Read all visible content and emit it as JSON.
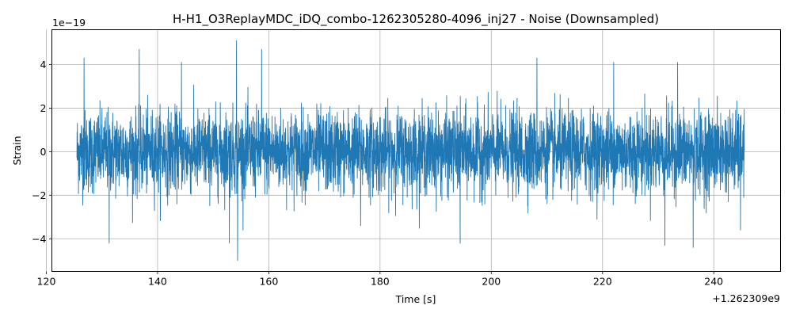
{
  "chart_data": {
    "type": "line",
    "title": "H-H1_O3ReplayMDC_iDQ_combo-1262305280-4096_inj27 - Noise (Downsampled)",
    "xlabel": "Time [s]",
    "ylabel": "Strain",
    "x_offset_label": "+1.262309e9",
    "y_scale_label": "1e−19",
    "xlim": [
      121,
      252
    ],
    "ylim": [
      -5.5,
      5.6
    ],
    "x_ticks": [
      120,
      140,
      160,
      180,
      200,
      220,
      240
    ],
    "x_tick_labels": [
      "120",
      "140",
      "160",
      "180",
      "200",
      "220",
      "240"
    ],
    "y_ticks": [
      -4,
      -2,
      0,
      2,
      4
    ],
    "y_tick_labels": [
      "−4",
      "−2",
      "0",
      "2",
      "4"
    ],
    "grid": true,
    "series": [
      {
        "color": "#1f77b4",
        "x_start": 125.5,
        "x_end": 245.5,
        "typical_amplitude": 1.3,
        "peaks": [
          {
            "x": 126.8,
            "y": 4.3
          },
          {
            "x": 131.3,
            "y": -4.2
          },
          {
            "x": 136.7,
            "y": 4.7
          },
          {
            "x": 144.3,
            "y": 4.1
          },
          {
            "x": 152.9,
            "y": -4.2
          },
          {
            "x": 154.2,
            "y": 5.1
          },
          {
            "x": 154.4,
            "y": -5.0
          },
          {
            "x": 158.7,
            "y": 4.7
          },
          {
            "x": 176.5,
            "y": -3.4
          },
          {
            "x": 194.4,
            "y": -4.2
          },
          {
            "x": 208.2,
            "y": 4.3
          },
          {
            "x": 222.0,
            "y": 4.1
          },
          {
            "x": 231.2,
            "y": -4.3
          },
          {
            "x": 233.5,
            "y": 4.1
          },
          {
            "x": 236.3,
            "y": -4.4
          },
          {
            "x": 244.8,
            "y": -3.6
          }
        ]
      }
    ]
  }
}
